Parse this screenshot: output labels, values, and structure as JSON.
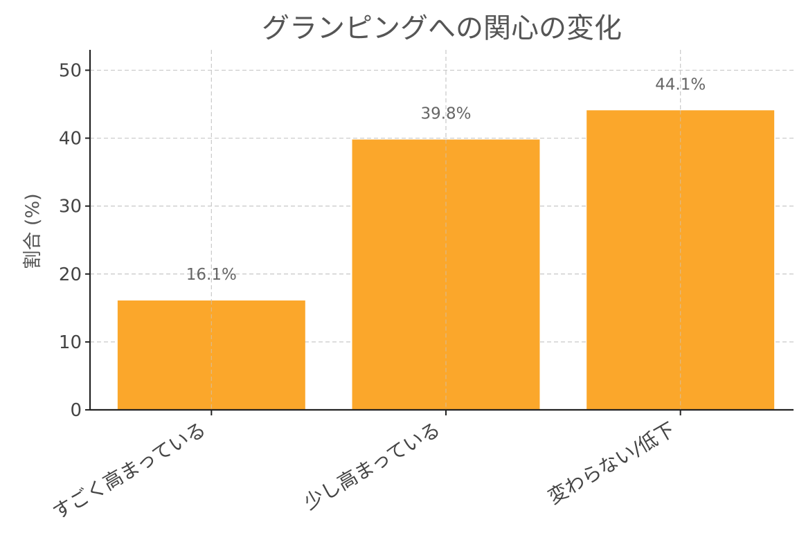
{
  "chart_data": {
    "type": "bar",
    "title": "グランピングへの関心の変化",
    "xlabel": "",
    "ylabel": "割合 (%)",
    "categories": [
      "すごく高まっている",
      "少し高まっている",
      "変わらない/低下"
    ],
    "values": [
      16.1,
      39.8,
      44.1
    ],
    "data_labels": [
      "16.1%",
      "39.8%",
      "44.1%"
    ],
    "ylim": [
      0,
      53
    ],
    "yticks": [
      0,
      10,
      20,
      30,
      40,
      50
    ],
    "ytick_labels": [
      "0",
      "10",
      "20",
      "30",
      "40",
      "50"
    ],
    "grid": true,
    "bar_color": "#FBA72B"
  }
}
